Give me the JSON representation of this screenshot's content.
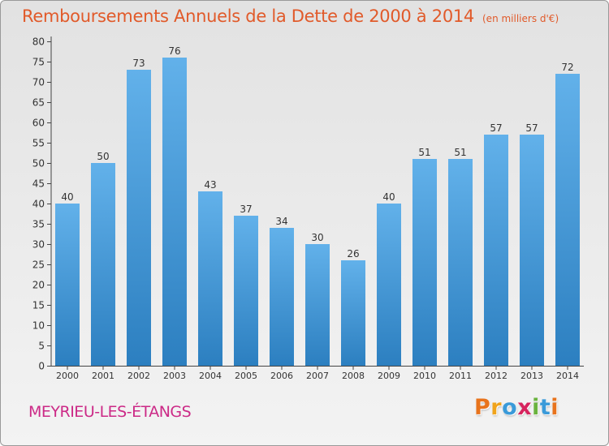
{
  "header": {
    "title": "Remboursements Annuels de la Dette de 2000 à 2014",
    "unit": "(en milliers d'€)"
  },
  "footer": {
    "commune": "MEYRIEU-LES-ÉTANGS",
    "logo_text": "Proxiti"
  },
  "colors": {
    "title": "#e15a2a",
    "commune": "#cc2a87",
    "bar_top": "#62b1ea",
    "bar_bottom": "#2c7fc0",
    "logo": [
      "#e8731c",
      "#f0a41c",
      "#3a9ad9",
      "#d6235d",
      "#6ab33e",
      "#3a9ad9",
      "#e8731c"
    ]
  },
  "chart_data": {
    "type": "bar",
    "title": "Remboursements Annuels de la Dette de 2000 à 2014",
    "xlabel": "",
    "ylabel": "",
    "categories": [
      "2000",
      "2001",
      "2002",
      "2003",
      "2004",
      "2005",
      "2006",
      "2007",
      "2008",
      "2009",
      "2010",
      "2011",
      "2012",
      "2013",
      "2014"
    ],
    "values": [
      40,
      50,
      73,
      76,
      43,
      37,
      34,
      30,
      26,
      40,
      51,
      51,
      57,
      57,
      72
    ],
    "ylim": [
      0,
      80
    ],
    "yticks": [
      0,
      5,
      10,
      15,
      20,
      25,
      30,
      35,
      40,
      45,
      50,
      55,
      60,
      65,
      70,
      75,
      80
    ],
    "grid": false,
    "data_labels": true
  }
}
